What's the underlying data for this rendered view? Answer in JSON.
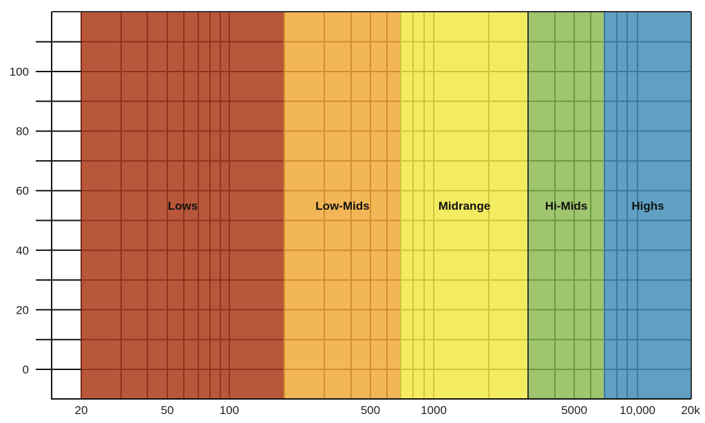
{
  "chart_data": {
    "type": "bar",
    "title": "",
    "xlabel": "",
    "ylabel": "",
    "x_scale": "log",
    "xlim": [
      20,
      20000
    ],
    "ylim": [
      -10,
      120
    ],
    "grid": true,
    "x_ticks": [
      {
        "value": 20,
        "label": "20"
      },
      {
        "value": 50,
        "label": "50"
      },
      {
        "value": 100,
        "label": "100"
      },
      {
        "value": 500,
        "label": "500"
      },
      {
        "value": 1000,
        "label": "1000"
      },
      {
        "value": 5000,
        "label": "5000"
      },
      {
        "value": 10000,
        "label": "10,000"
      },
      {
        "value": 20000,
        "label": "20k"
      }
    ],
    "y_ticks": [
      {
        "value": 0,
        "label": "0"
      },
      {
        "value": 20,
        "label": "20"
      },
      {
        "value": 40,
        "label": "40"
      },
      {
        "value": 60,
        "label": "60"
      },
      {
        "value": 80,
        "label": "80"
      },
      {
        "value": 100,
        "label": "100"
      }
    ],
    "x_gridlines": [
      20,
      30,
      40,
      50,
      60,
      70,
      80,
      90,
      100,
      200,
      300,
      400,
      500,
      600,
      700,
      800,
      900,
      1000,
      2000,
      3000,
      4000,
      5000,
      6000,
      7000,
      8000,
      9000,
      10000,
      20000
    ],
    "y_gridlines": [
      -10,
      0,
      10,
      20,
      30,
      40,
      50,
      60,
      70,
      80,
      90,
      100,
      110,
      120
    ],
    "bands": [
      {
        "name": "Lows",
        "from": 20,
        "to": 200,
        "color": "#b9573a",
        "grid_color": "#8c3520"
      },
      {
        "name": "Low-Mids",
        "from": 200,
        "to": 700,
        "color": "#f2b656",
        "grid_color": "#d08e2c"
      },
      {
        "name": "Midrange",
        "from": 700,
        "to": 3000,
        "color": "#f3ec62",
        "grid_color": "#cfc43e"
      },
      {
        "name": "Hi-Mids",
        "from": 3000,
        "to": 7000,
        "color": "#9fc66f",
        "grid_color": "#6c9a40"
      },
      {
        "name": "Highs",
        "from": 7000,
        "to": 20000,
        "color": "#5fa0c3",
        "grid_color": "#3d799d"
      }
    ],
    "band_label_y": 55
  }
}
